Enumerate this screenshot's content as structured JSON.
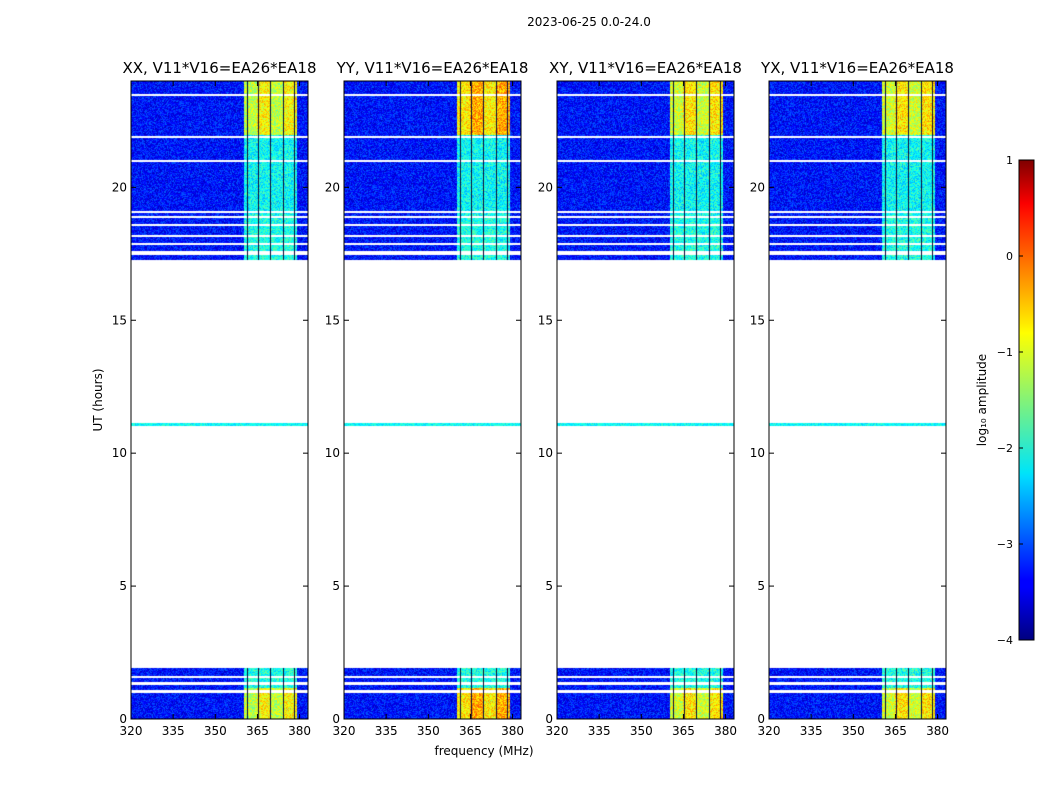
{
  "figure_title": "2023-06-25 0.0-24.0",
  "shared_ylabel": "UT (hours)",
  "shared_xlabel": "frequency (MHz)",
  "colorbar": {
    "label": "log₁₀ amplitude",
    "range": [
      -4,
      1
    ],
    "ticks": [
      1,
      0,
      -1,
      -2,
      -3,
      -4
    ],
    "tick_labels": [
      "1",
      "0",
      "−1",
      "−2",
      "−3",
      "−4"
    ],
    "colormap": "jet"
  },
  "chart_data": [
    {
      "type": "heatmap",
      "title": "XX, V11*V16=EA26*EA18",
      "xlim": [
        320,
        383
      ],
      "ylim": [
        0,
        24
      ],
      "xticks": [
        320,
        335,
        350,
        365,
        380
      ],
      "yticks": [
        0,
        5,
        10,
        15,
        20
      ],
      "data_time_ranges_hours": [
        [
          0,
          1.9
        ],
        [
          11.05,
          11.1
        ],
        [
          17.3,
          24
        ]
      ],
      "rfi_band_mhz": [
        360,
        379
      ],
      "background_log_amplitude": -3.3,
      "rfi_log_amplitude": -1.2
    },
    {
      "type": "heatmap",
      "title": "YY, V11*V16=EA26*EA18",
      "xlim": [
        320,
        383
      ],
      "ylim": [
        0,
        24
      ],
      "xticks": [
        320,
        335,
        350,
        365,
        380
      ],
      "yticks": [
        0,
        5,
        10,
        15,
        20
      ],
      "data_time_ranges_hours": [
        [
          0,
          1.9
        ],
        [
          11.05,
          11.1
        ],
        [
          17.3,
          24
        ]
      ],
      "rfi_band_mhz": [
        360,
        379
      ],
      "background_log_amplitude": -3.3,
      "rfi_log_amplitude": -0.8
    },
    {
      "type": "heatmap",
      "title": "XY, V11*V16=EA26*EA18",
      "xlim": [
        320,
        383
      ],
      "ylim": [
        0,
        24
      ],
      "xticks": [
        320,
        335,
        350,
        365,
        380
      ],
      "yticks": [
        0,
        5,
        10,
        15,
        20
      ],
      "data_time_ranges_hours": [
        [
          0,
          1.9
        ],
        [
          11.05,
          11.1
        ],
        [
          17.3,
          24
        ]
      ],
      "rfi_band_mhz": [
        360,
        379
      ],
      "background_log_amplitude": -3.3,
      "rfi_log_amplitude": -1.1
    },
    {
      "type": "heatmap",
      "title": "YX, V11*V16=EA26*EA18",
      "xlim": [
        320,
        383
      ],
      "ylim": [
        0,
        24
      ],
      "xticks": [
        320,
        335,
        350,
        365,
        380
      ],
      "yticks": [
        0,
        5,
        10,
        15,
        20
      ],
      "data_time_ranges_hours": [
        [
          0,
          1.9
        ],
        [
          11.05,
          11.1
        ],
        [
          17.3,
          24
        ]
      ],
      "rfi_band_mhz": [
        360,
        379
      ],
      "background_log_amplitude": -3.3,
      "rfi_log_amplitude": -1.1
    }
  ]
}
